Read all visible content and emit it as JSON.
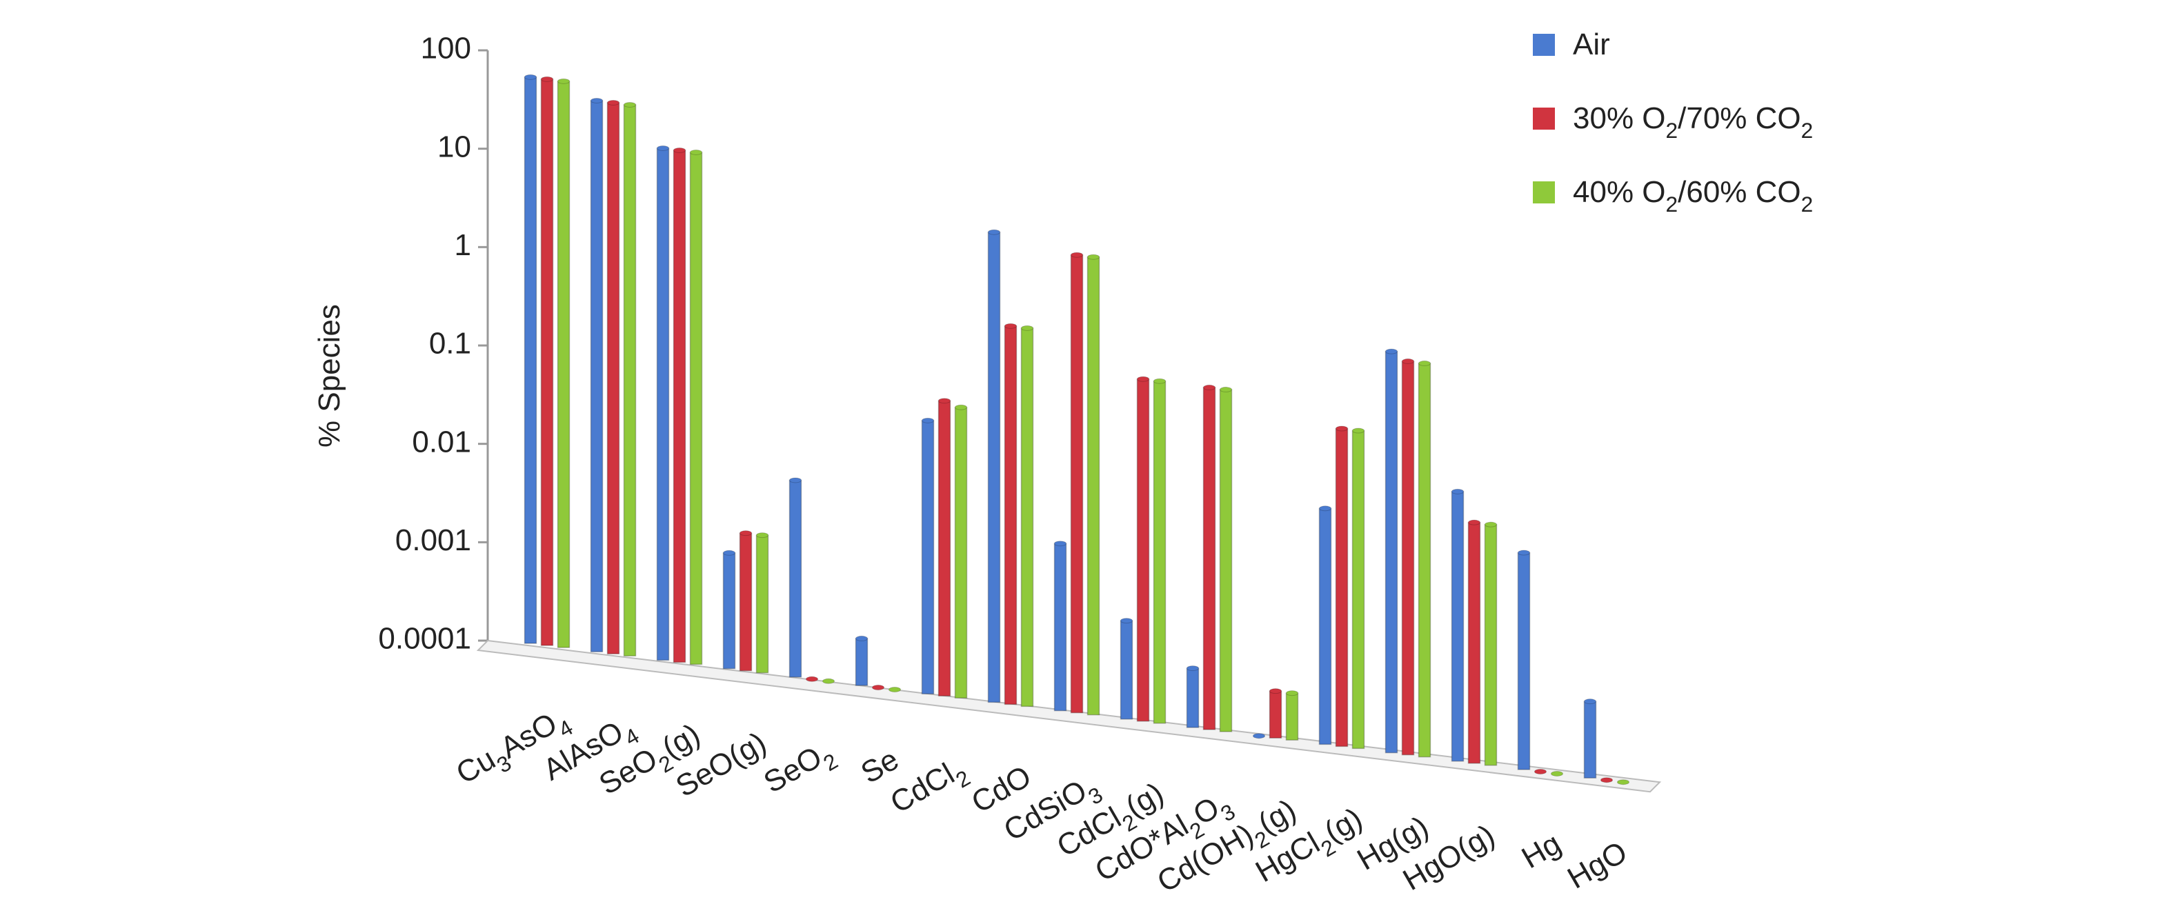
{
  "chart_data": {
    "type": "bar",
    "y_label": "% Species",
    "log_scale": true,
    "categories": [
      "Cu3AsO4",
      "AlAsO4",
      "SeO2(g)",
      "SeO(g)",
      "SeO2",
      "Se",
      "CdCl2",
      "CdO",
      "CdSiO3",
      "CdCl2(g)",
      "CdO*Al2O3",
      "Cd(OH)2(g)",
      "HgCl2(g)",
      "Hg(g)",
      "HgO(g)",
      "Hg",
      "HgO"
    ],
    "series": [
      {
        "name": "Air",
        "color": "#4a7bd0",
        "values": [
          57,
          40,
          16,
          0.0015,
          0.01,
          0.0003,
          0.06,
          6,
          0.005,
          0.001,
          0.0004,
          0.0001,
          0.025,
          1.2,
          0.055,
          0.016,
          0.0006
        ]
      },
      {
        "name": "30% O2/70% CO2",
        "color": "#d0343f",
        "values": [
          57,
          40,
          16,
          0.0025,
          0.0001,
          0.0001,
          0.1,
          0.7,
          4.5,
          0.3,
          0.3,
          0.0003,
          0.17,
          1,
          0.028,
          0.0001,
          0.0001
        ]
      },
      {
        "name": "40% O2/60% CO2",
        "color": "#8fc93a",
        "values": [
          57,
          40,
          16,
          0.0025,
          0.0001,
          0.0001,
          0.09,
          0.7,
          4.5,
          0.3,
          0.3,
          0.0003,
          0.17,
          1,
          0.028,
          0.0001,
          0.0001
        ]
      }
    ],
    "ylim": [
      0.0001,
      100
    ],
    "yticks": [
      0.0001,
      0.001,
      0.01,
      0.1,
      1,
      10,
      100
    ],
    "grid": false,
    "legend": "top-right"
  }
}
